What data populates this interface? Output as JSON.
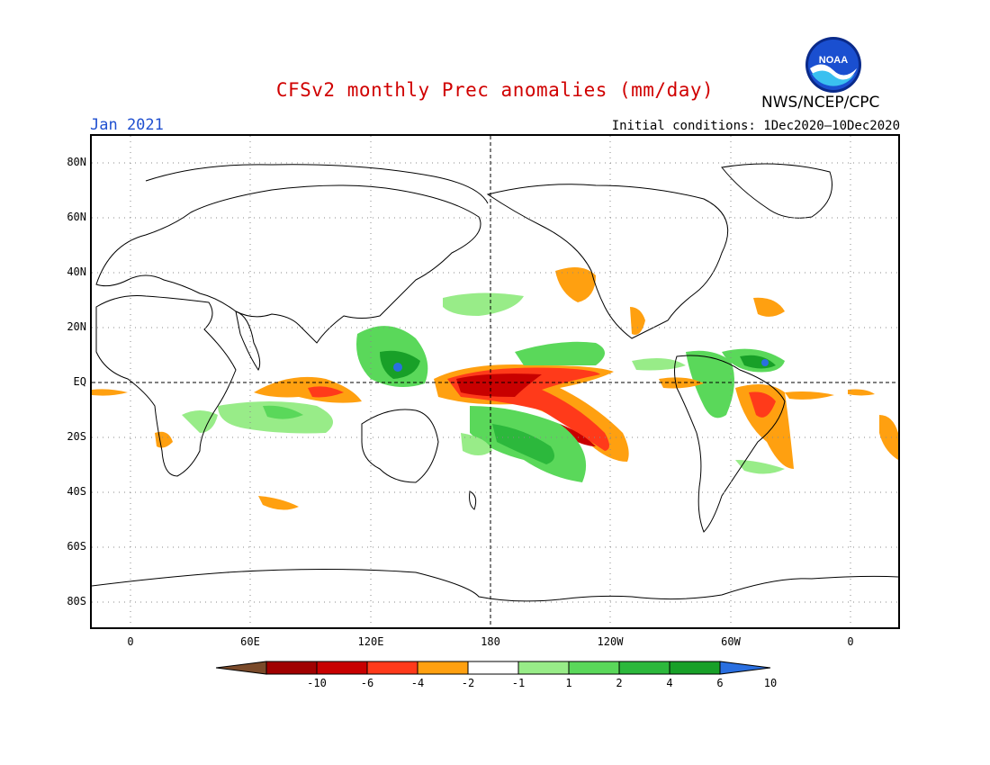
{
  "title": "CFSv2 monthly Prec anomalies (mm/day)",
  "month": "Jan 2021",
  "initial_conditions": "Initial conditions: 1Dec2020—10Dec2020",
  "agency": "NWS/NCEP/CPC",
  "logo_text": "NOAA",
  "colors": {
    "title": "#d00000",
    "month": "#2050d0",
    "scale": [
      "#7a4a2a",
      "#a00000",
      "#c80000",
      "#ff3a1a",
      "#ffa010",
      "#ffffff",
      "#98ec88",
      "#5ad85a",
      "#2cb83c",
      "#18a028",
      "#2a6fe0"
    ]
  },
  "map": {
    "lat_ticks": [
      "80N",
      "60N",
      "40N",
      "20N",
      "EQ",
      "20S",
      "40S",
      "60S",
      "80S"
    ],
    "lon_ticks": [
      "0",
      "60E",
      "120E",
      "180",
      "120W",
      "60W",
      "0"
    ]
  },
  "colorbar": {
    "labels": [
      "-10",
      "-6",
      "-4",
      "-2",
      "-1",
      "1",
      "2",
      "4",
      "6",
      "10"
    ]
  }
}
